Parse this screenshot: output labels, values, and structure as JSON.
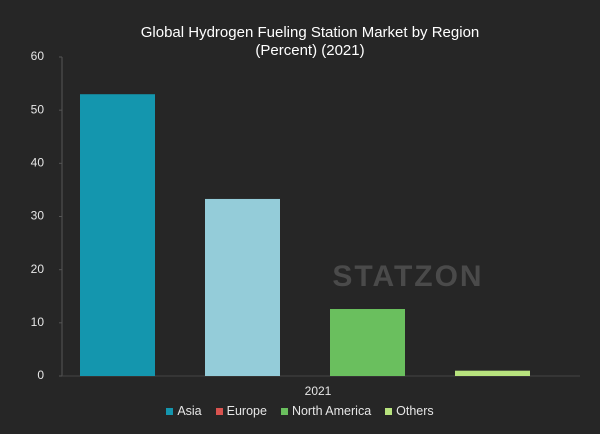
{
  "chart_data": {
    "type": "bar",
    "title": "Global Hydrogen Fueling Station Market by Region (Percent) (2021)",
    "categories": [
      "2021"
    ],
    "series": [
      {
        "name": "Asia",
        "color": "#1496ae",
        "legend_color": "#1496ae",
        "values": [
          53
        ]
      },
      {
        "name": "Europe",
        "color": "#94ccd9",
        "legend_color": "#d9534f",
        "values": [
          33.3
        ]
      },
      {
        "name": "North America",
        "color": "#6abf5e",
        "legend_color": "#6abf5e",
        "values": [
          12.6
        ]
      },
      {
        "name": "Others",
        "color": "#b7e27d",
        "legend_color": "#b7e27d",
        "values": [
          1
        ]
      }
    ],
    "ylim": [
      0,
      60
    ],
    "yticks": [
      0,
      10,
      20,
      30,
      40,
      50,
      60
    ],
    "grid": false,
    "watermark": "STATZON"
  }
}
